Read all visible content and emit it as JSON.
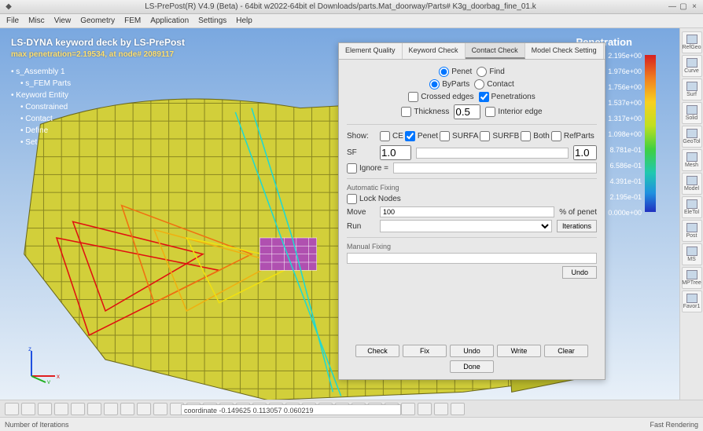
{
  "window": {
    "title": "LS-PrePost(R) V4.9 (Beta) - 64bit w2022-64bit el Downloads/parts.Mat_doorway/Parts# K3g_doorbag_fine_01.k",
    "min_icon": "—",
    "max_icon": "▢",
    "close_icon": "×"
  },
  "menu": {
    "items": [
      "File",
      "Misc",
      "View",
      "Geometry",
      "FEM",
      "Application",
      "Settings",
      "Help"
    ]
  },
  "overlay": {
    "title": "LS-DYNA keyword deck by LS-PrePost",
    "subtitle": "max penetration=2.19534, at node# 2089117"
  },
  "tree": {
    "items": [
      {
        "label": "s_Assembly 1",
        "children": [
          "s_FEM Parts"
        ]
      },
      {
        "label": "Keyword Entity",
        "children": [
          "Constrained",
          "Contact",
          "Define",
          "Set"
        ]
      }
    ]
  },
  "legend": {
    "title": "Penetration",
    "ticks": [
      "2.195e+00",
      "1.976e+00",
      "1.756e+00",
      "1.537e+00",
      "1.317e+00",
      "1.098e+00",
      "8.781e-01",
      "6.586e-01",
      "4.391e-01",
      "2.195e-01",
      "0.000e+00"
    ]
  },
  "dialog": {
    "tabs": [
      "Element Quality",
      "Keyword Check",
      "Contact Check",
      "Model Check Setting"
    ],
    "active_tab": 2,
    "scope": {
      "penet": "Penet",
      "find": "Find",
      "penet_checked": true
    },
    "src": {
      "byparts": "ByParts",
      "contact": "Contact",
      "byparts_checked": true
    },
    "flags": {
      "crossed": "Crossed edges",
      "penetrations": "Penetrations",
      "thickness": "Thickness",
      "interior": "Interior edge",
      "pen_checked": true
    },
    "thick_val": "0.5",
    "show": {
      "label": "Show:",
      "opts": [
        "CE",
        "Penet",
        "SURFA",
        "SURFB",
        "Both",
        "RefParts"
      ],
      "penet_checked": true
    },
    "sf": {
      "label": "SF",
      "val": "1.0",
      "rval": "1.0"
    },
    "ignore": {
      "label": "Ignore = "
    },
    "autofix": {
      "title": "Automatic Fixing",
      "lock": "Lock Nodes"
    },
    "move": {
      "label": "Move",
      "unit": "% of penet",
      "val": "100"
    },
    "run": {
      "label": "Run",
      "btn": "Iterations"
    },
    "manual": {
      "title": "Manual Fixing",
      "btn": "Undo"
    },
    "buttons": [
      "Check",
      "Fix",
      "Undo",
      "Write",
      "Clear"
    ],
    "done": "Done"
  },
  "right_tools": [
    "RefGeo",
    "Curve",
    "Surf",
    "Solid",
    "GeoTol",
    "Mesh",
    "Model",
    "EleTol",
    "Post",
    "MS",
    "MPTree",
    "Favor1"
  ],
  "bottom_count": 28,
  "cmdline": "coordinate -0.149625 0.113057 0.060219",
  "status": {
    "left": "Number of Iterations",
    "right": "Fast Rendering"
  },
  "triad": {
    "x": "x",
    "y": "y",
    "z": "z"
  }
}
